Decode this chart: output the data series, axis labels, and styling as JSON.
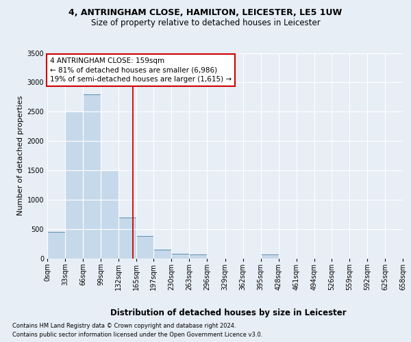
{
  "title_line1": "4, ANTRINGHAM CLOSE, HAMILTON, LEICESTER, LE5 1UW",
  "title_line2": "Size of property relative to detached houses in Leicester",
  "xlabel": "Distribution of detached houses by size in Leicester",
  "ylabel": "Number of detached properties",
  "footer_line1": "Contains HM Land Registry data © Crown copyright and database right 2024.",
  "footer_line2": "Contains public sector information licensed under the Open Government Licence v3.0.",
  "property_label": "4 ANTRINGHAM CLOSE: 159sqm",
  "annotation_line1": "← 81% of detached houses are smaller (6,986)",
  "annotation_line2": "19% of semi-detached houses are larger (1,615) →",
  "bin_edges": [
    0,
    33,
    66,
    99,
    132,
    165,
    197,
    230,
    263,
    296,
    329,
    362,
    395,
    428,
    461,
    494,
    526,
    559,
    592,
    625,
    658
  ],
  "bin_labels": [
    "0sqm",
    "33sqm",
    "66sqm",
    "99sqm",
    "132sqm",
    "165sqm",
    "197sqm",
    "230sqm",
    "263sqm",
    "296sqm",
    "329sqm",
    "362sqm",
    "395sqm",
    "428sqm",
    "461sqm",
    "494sqm",
    "526sqm",
    "559sqm",
    "592sqm",
    "625sqm",
    "658sqm"
  ],
  "bar_counts": [
    450,
    2500,
    2800,
    1500,
    700,
    380,
    150,
    80,
    60,
    0,
    0,
    0,
    60,
    0,
    0,
    0,
    0,
    0,
    0,
    0
  ],
  "bar_color": "#c6d9ea",
  "bar_edgecolor": "#5b8db0",
  "vline_color": "#cc0000",
  "vline_x": 159,
  "ylim": [
    0,
    3500
  ],
  "yticks": [
    0,
    500,
    1000,
    1500,
    2000,
    2500,
    3000,
    3500
  ],
  "bg_color": "#e8eef6",
  "plot_bg_color": "#e8eef6",
  "grid_color": "#ffffff",
  "annotation_box_edgecolor": "#cc0000",
  "annotation_box_facecolor": "#ffffff",
  "title1_fontsize": 9,
  "title2_fontsize": 8.5,
  "ylabel_fontsize": 8,
  "xlabel_fontsize": 8.5,
  "footer_fontsize": 6,
  "tick_fontsize": 7,
  "ann_fontsize": 7.5
}
